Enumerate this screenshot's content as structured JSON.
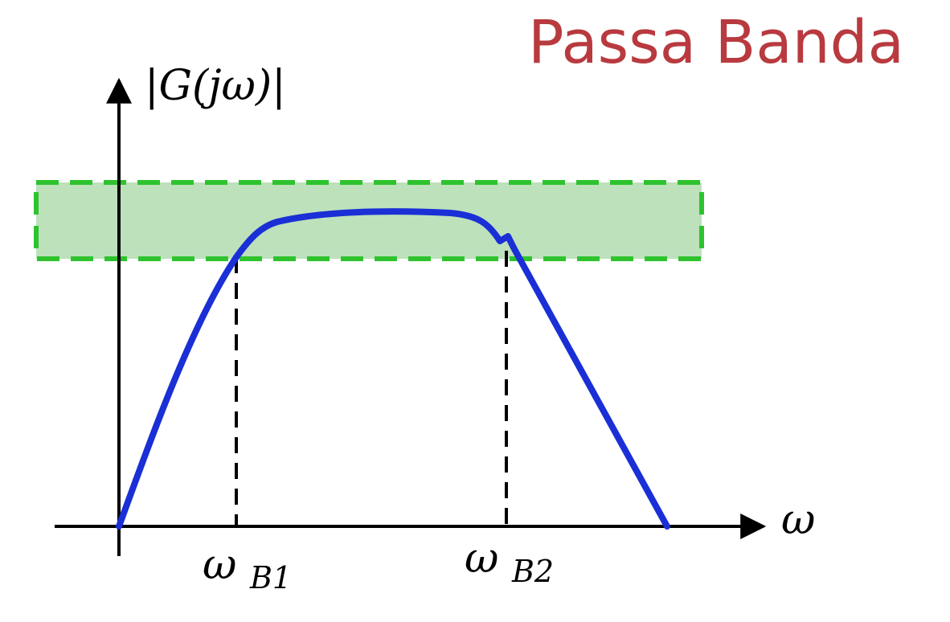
{
  "title": "Passa Banda",
  "y_axis_label": "|G(jω)|",
  "x_axis_label": "ω",
  "cutoff_labels": [
    {
      "main": "ω",
      "sub": "B1"
    },
    {
      "main": "ω",
      "sub": "B2"
    }
  ],
  "colors": {
    "title": "#b83a3f",
    "curve": "#1a2fd6",
    "band_fill": "#b9dfb7",
    "band_border": "#2ec32e",
    "axes": "#000000",
    "cutoff_lines": "#000000"
  }
}
